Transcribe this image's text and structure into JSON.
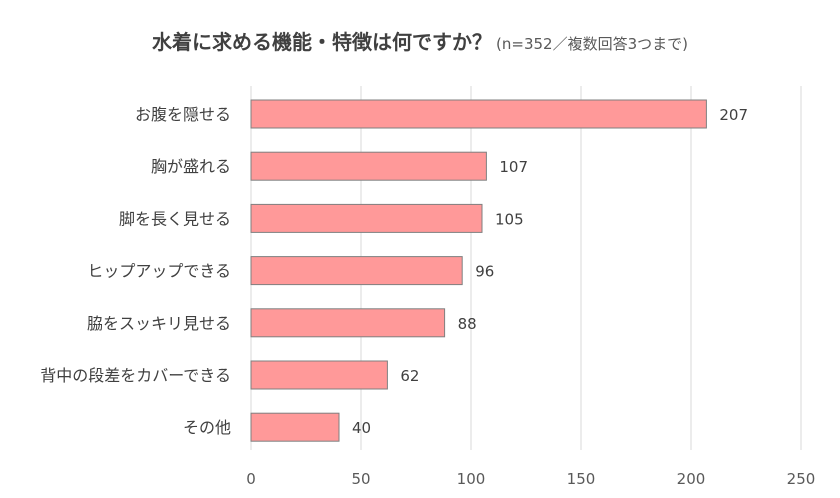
{
  "chart_data": {
    "type": "bar",
    "orientation": "horizontal",
    "title": "水着に求める機能・特徴は何ですか？",
    "subtitle": "(n=352／複数回答3つまで)",
    "categories": [
      "お腹を隠せる",
      "胸が盛れる",
      "脚を長く見せる",
      "ヒップアップできる",
      "脇をスッキリ見せる",
      "背中の段差をカバーできる",
      "その他"
    ],
    "values": [
      207,
      107,
      105,
      96,
      88,
      62,
      40
    ],
    "xlim": [
      0,
      250
    ],
    "xticks": [
      "0",
      "50",
      "100",
      "150",
      "200",
      "250"
    ],
    "grid": true,
    "legend": "none",
    "bar_color": "#FF9999",
    "bar_edge_color": "#7F7F7F",
    "grid_color": "#D9D9D9"
  }
}
